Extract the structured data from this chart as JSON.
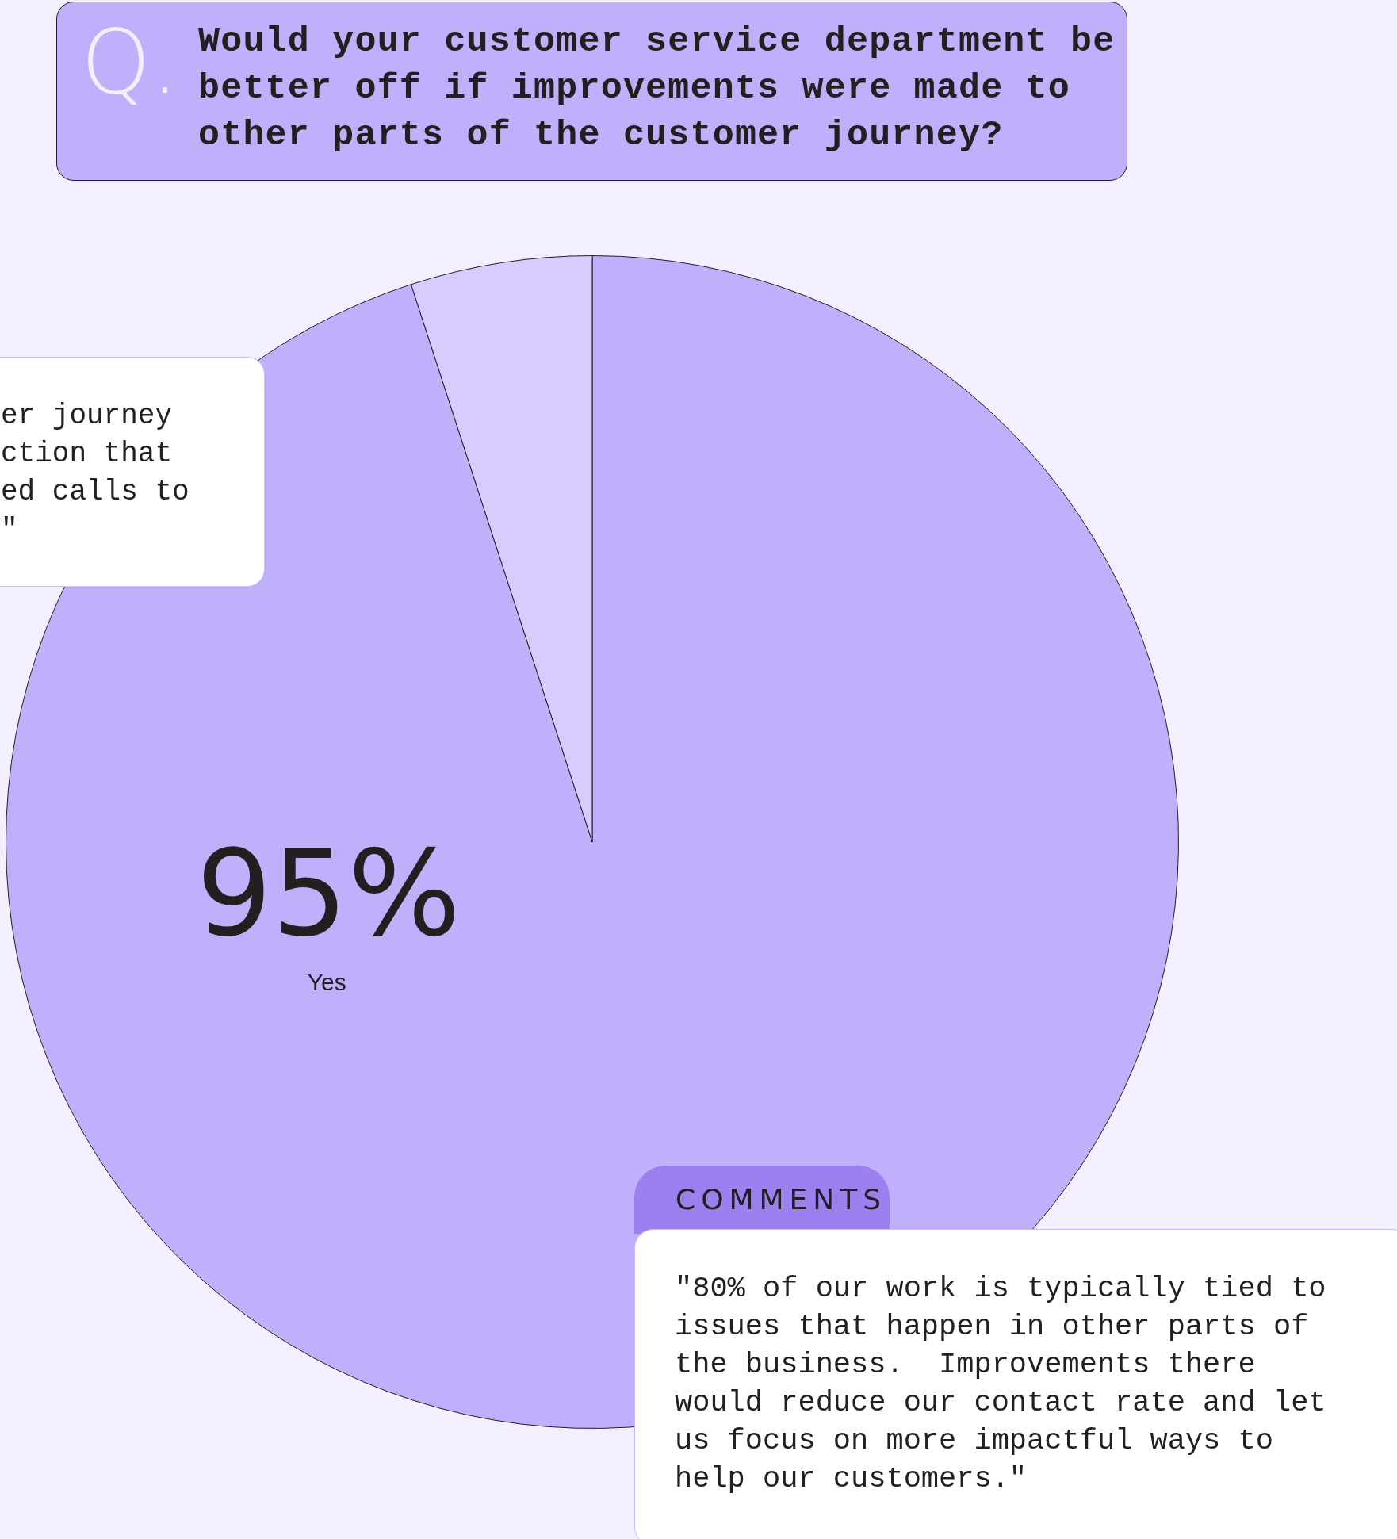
{
  "chart_data": {
    "type": "pie",
    "title": "Would your customer service department be better off if improvements were made to other parts of the customer journey?",
    "categories": [
      "Yes",
      null
    ],
    "values": [
      95,
      5
    ],
    "colors": [
      "#c0b0fc",
      "#d8ccfe"
    ],
    "value_labels": [
      "95%",
      null
    ],
    "annotations": [
      "Q.",
      "COMMENTS",
      "\"80% of our work is typically tied to issues that happen in other parts of the business.  Improvements there would reduce our contact rate and let us focus on more impactful ways to help our customers.\"",
      "er journey\nction that\ned calls to\n\""
    ]
  }
}
